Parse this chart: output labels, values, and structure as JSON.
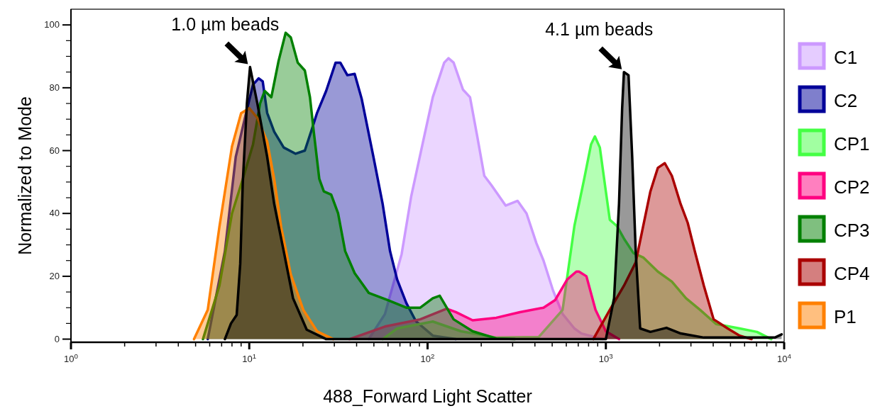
{
  "chart_data": {
    "type": "area",
    "xlabel": "488_Forward Light Scatter",
    "ylabel": "Normalized to Mode",
    "log": "x",
    "xlim": [
      1,
      10000
    ],
    "ylim": [
      -1,
      105
    ],
    "xticks": [
      {
        "value": 1,
        "label": "10$^{0}$"
      },
      {
        "value": 2,
        "label": null
      },
      {
        "value": 3,
        "label": null
      },
      {
        "value": 4,
        "label": null
      },
      {
        "value": 5,
        "label": null
      },
      {
        "value": 6,
        "label": null
      },
      {
        "value": 7,
        "label": null
      },
      {
        "value": 8,
        "label": null
      },
      {
        "value": 9,
        "label": null
      },
      {
        "value": 10,
        "label": "10$^{1}$"
      },
      {
        "value": 20,
        "label": null
      },
      {
        "value": 30,
        "label": null
      },
      {
        "value": 40,
        "label": null
      },
      {
        "value": 50,
        "label": null
      },
      {
        "value": 60,
        "label": null
      },
      {
        "value": 70,
        "label": null
      },
      {
        "value": 80,
        "label": null
      },
      {
        "value": 90,
        "label": null
      },
      {
        "value": 100,
        "label": "10$^{2}$"
      },
      {
        "value": 200,
        "label": null
      },
      {
        "value": 300,
        "label": null
      },
      {
        "value": 400,
        "label": null
      },
      {
        "value": 500,
        "label": null
      },
      {
        "value": 600,
        "label": null
      },
      {
        "value": 700,
        "label": null
      },
      {
        "value": 800,
        "label": null
      },
      {
        "value": 900,
        "label": null
      },
      {
        "value": 1000,
        "label": "10$^{3}$"
      },
      {
        "value": 2000,
        "label": null
      },
      {
        "value": 3000,
        "label": null
      },
      {
        "value": 4000,
        "label": null
      },
      {
        "value": 5000,
        "label": null
      },
      {
        "value": 6000,
        "label": null
      },
      {
        "value": 7000,
        "label": null
      },
      {
        "value": 8000,
        "label": null
      },
      {
        "value": 9000,
        "label": null
      },
      {
        "value": 10000,
        "label": "10$^{4}$"
      }
    ],
    "yticks": [
      0,
      {
        "value": 5,
        "label": null
      },
      {
        "value": 10,
        "label": null
      },
      {
        "value": 15,
        "label": null
      },
      20,
      {
        "value": 25,
        "label": null
      },
      {
        "value": 30,
        "label": null
      },
      {
        "value": 35,
        "label": null
      },
      40,
      {
        "value": 45,
        "label": null
      },
      {
        "value": 50,
        "label": null
      },
      {
        "value": 55,
        "label": null
      },
      60,
      {
        "value": 65,
        "label": null
      },
      {
        "value": 70,
        "label": null
      },
      {
        "value": 75,
        "label": null
      },
      80,
      {
        "value": 85,
        "label": null
      },
      {
        "value": 90,
        "label": null
      },
      {
        "value": 95,
        "label": null
      },
      100
    ],
    "grid": false,
    "legend": "right",
    "series": [
      {
        "name": "C1",
        "color": "#cc99ff",
        "x": [
          46.8,
          57.7,
          71.5,
          81,
          94.5,
          107,
          124,
          131,
          140,
          158,
          173,
          190,
          208,
          228,
          274,
          320,
          359,
          408,
          447,
          506,
          572,
          666,
          729,
          960
        ],
        "values": [
          0,
          8,
          27,
          45.5,
          63,
          77,
          88,
          89.4,
          88,
          79.4,
          77,
          64.5,
          52,
          49,
          42.5,
          44,
          40,
          30.5,
          25,
          15.4,
          8,
          3.4,
          1.8,
          0
        ]
      },
      {
        "name": "C2",
        "color": "#000099",
        "x": [
          5.85,
          7.3,
          8.4,
          9.6,
          10.5,
          11.3,
          11.9,
          12.6,
          13.8,
          15.6,
          18.2,
          20.5,
          22.5,
          24,
          27,
          30.5,
          32.4,
          35.5,
          39,
          42.7,
          49.7,
          56,
          61.6,
          67.5,
          76,
          86,
          107,
          144
        ],
        "values": [
          0,
          28,
          58,
          72,
          81,
          83,
          82,
          72,
          66,
          61,
          59,
          60,
          67,
          72,
          79,
          88,
          88,
          84,
          84.4,
          76.5,
          58,
          43,
          28,
          19,
          11.5,
          5.7,
          1.1,
          0
        ]
      },
      {
        "name": "CP1",
        "color": "#44ff44",
        "x": [
          56,
          67.5,
          107,
          154,
          243,
          421,
          572,
          666,
          756,
          826,
          868,
          925,
          1000,
          1052,
          1153,
          1263,
          1427,
          1620,
          1956,
          2345,
          2815,
          3380,
          4150,
          5630,
          7040,
          8470
        ],
        "values": [
          0,
          3.4,
          5.6,
          2.5,
          0.5,
          0.7,
          9.3,
          36,
          51,
          62,
          64.5,
          61,
          47,
          38,
          36,
          32,
          27.4,
          26,
          21.5,
          18.3,
          13,
          9.3,
          4.8,
          3.4,
          2.3,
          0
        ]
      },
      {
        "name": "CP2",
        "color": "#ff0080",
        "x": [
          36.5,
          57.7,
          91,
          128,
          144,
          179,
          243,
          330,
          447,
          519,
          607,
          683,
          707,
          778,
          875,
          1000,
          1185
        ],
        "values": [
          0,
          4,
          6.3,
          9.7,
          8.6,
          6,
          6.8,
          8.6,
          10,
          12.4,
          19,
          21.5,
          21.5,
          20,
          9.3,
          2.5,
          0
        ]
      },
      {
        "name": "CP3",
        "color": "#008000",
        "x": [
          5.5,
          6.8,
          8.0,
          9.2,
          10.5,
          11.5,
          12.2,
          13.3,
          14.6,
          16,
          17.1,
          18.7,
          20.5,
          21.9,
          23,
          24.7,
          26.2,
          28.8,
          31.5,
          34.5,
          39,
          46.8,
          60,
          76,
          91,
          107,
          117,
          140,
          179,
          243,
          310
        ],
        "values": [
          0,
          17,
          40,
          51,
          62,
          75,
          79,
          77,
          88.5,
          97.5,
          96,
          88,
          85.5,
          77,
          66,
          51,
          47,
          46,
          40,
          28,
          21,
          14.7,
          12.4,
          10,
          10,
          13,
          13.8,
          6.3,
          2.5,
          0.2,
          0
        ]
      },
      {
        "name": "CP4",
        "color": "#aa0000",
        "x": [
          850,
          1052,
          1263,
          1470,
          1620,
          1777,
          1956,
          2140,
          2345,
          2626,
          2878,
          3153,
          3545,
          4020,
          4820,
          5630,
          6561
        ],
        "values": [
          0,
          9.3,
          17,
          24.4,
          36,
          47,
          54.5,
          56,
          52,
          43,
          37,
          28,
          17,
          6.3,
          3.4,
          1.1,
          0
        ]
      },
      {
        "name": "P1",
        "color": "#ff8000",
        "x": [
          4.9,
          5.85,
          6.8,
          8.0,
          9.0,
          10,
          11.1,
          12.6,
          13.8,
          15.1,
          17.1,
          20.1,
          24,
          29.6
        ],
        "values": [
          0,
          9.3,
          35.7,
          61.3,
          71.9,
          73.5,
          70.4,
          62.9,
          50.9,
          35.7,
          20.6,
          9.3,
          2.5,
          0
        ]
      },
      {
        "color": "#000000",
        "x": [
          7.3,
          7.9,
          8.5,
          8.9,
          9.2,
          9.7,
          10.1,
          11.1,
          12.6,
          13.8,
          15.6,
          17.6,
          21,
          27,
          1000,
          1112,
          1185,
          1234,
          1263,
          1340,
          1405,
          1470,
          1557,
          1777,
          2187,
          2626,
          3545,
          8870,
          9680
        ],
        "values": [
          0,
          5,
          7.7,
          24,
          50,
          75,
          86.6,
          75,
          58,
          43,
          28,
          13,
          3,
          0,
          0,
          13,
          43,
          73.5,
          85,
          84,
          58,
          28,
          3.4,
          2.3,
          3.6,
          1.8,
          0.5,
          0.5,
          1.5
        ]
      }
    ],
    "annotations": [
      {
        "text": "1.0 µm beads",
        "x": 10.1,
        "y": 86.6
      },
      {
        "text": "4.1 µm beads",
        "x": 1263,
        "y": 85
      }
    ]
  }
}
